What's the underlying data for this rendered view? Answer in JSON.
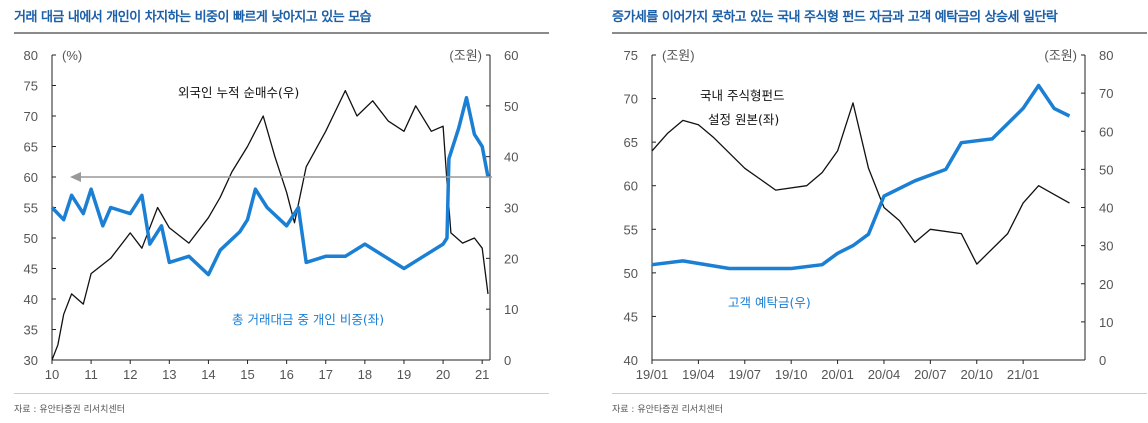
{
  "chart_data": [
    {
      "type": "line",
      "title": "거래 대금 내에서 개인이 차지하는 비중이 빠르게 낮아지고 있는 모습",
      "source": "자료 : 유안타증권 리서치센터",
      "left_unit": "(%)",
      "right_unit": "(조원)",
      "ylim_left": [
        30,
        80
      ],
      "ylim_right": [
        0,
        60
      ],
      "xlim": [
        2010,
        2021.2
      ],
      "left_ticks": [
        "30",
        "35",
        "40",
        "45",
        "50",
        "55",
        "60",
        "65",
        "70",
        "75",
        "80"
      ],
      "right_ticks": [
        "0",
        "10",
        "20",
        "30",
        "40",
        "50",
        "60"
      ],
      "x_ticks": [
        "10",
        "11",
        "12",
        "13",
        "14",
        "15",
        "16",
        "17",
        "18",
        "19",
        "20",
        "21"
      ],
      "annotation_arrow_left_value": 60,
      "series": [
        {
          "name": "외국인 누적 순매수(우)",
          "axis": "right",
          "color": "#111111",
          "x": [
            2010,
            2010.15,
            2010.3,
            2010.5,
            2010.8,
            2011,
            2011.5,
            2012,
            2012.3,
            2012.7,
            2013,
            2013.5,
            2014,
            2014.3,
            2014.6,
            2015,
            2015.4,
            2015.7,
            2016,
            2016.2,
            2016.5,
            2017,
            2017.5,
            2017.8,
            2018.2,
            2018.6,
            2019,
            2019.3,
            2019.7,
            2020,
            2020.1,
            2020.2,
            2020.5,
            2020.8,
            2021,
            2021.15
          ],
          "y": [
            0,
            3,
            9,
            13,
            11,
            17,
            20,
            25,
            22,
            30,
            26,
            23,
            28,
            32,
            37,
            42,
            48,
            40,
            33,
            27,
            38,
            45,
            53,
            48,
            51,
            47,
            45,
            50,
            45,
            46,
            35,
            25,
            23,
            24,
            22,
            13
          ]
        },
        {
          "name": "총 거래대금 중 개인 비중(좌)",
          "axis": "left",
          "color": "#1b7fd4",
          "x": [
            2010,
            2010.3,
            2010.5,
            2010.8,
            2011,
            2011.3,
            2011.5,
            2012,
            2012.3,
            2012.5,
            2012.8,
            2013,
            2013.5,
            2014,
            2014.3,
            2014.8,
            2015,
            2015.2,
            2015.5,
            2016,
            2016.3,
            2016.5,
            2017,
            2017.5,
            2018,
            2018.5,
            2019,
            2019.5,
            2020,
            2020.1,
            2020.15,
            2020.4,
            2020.6,
            2020.8,
            2021,
            2021.15
          ],
          "y": [
            55,
            53,
            57,
            54,
            58,
            52,
            55,
            54,
            57,
            49,
            52,
            46,
            47,
            44,
            48,
            51,
            53,
            58,
            55,
            52,
            55,
            46,
            47,
            47,
            49,
            47,
            45,
            47,
            49,
            50,
            63,
            68,
            73,
            67,
            65,
            60
          ]
        }
      ],
      "labels": {
        "black": "외국인 누적 순매수(우)",
        "blue": "총 거래대금 중 개인 비중(좌)"
      }
    },
    {
      "type": "line",
      "title": "증가세를 이어가지 못하고 있는 국내 주식형 펀드 자금과 고객 예탁금의 상승세 일단락",
      "source": "자료 : 유안타증권 리서치센터",
      "left_unit": "(조원)",
      "right_unit": "(조원)",
      "ylim_left": [
        40,
        75
      ],
      "ylim_right": [
        0,
        80
      ],
      "xlim": [
        "19/01",
        "21/05"
      ],
      "left_ticks": [
        "40",
        "45",
        "50",
        "55",
        "60",
        "65",
        "70",
        "75"
      ],
      "right_ticks": [
        "0",
        "10",
        "20",
        "30",
        "40",
        "50",
        "60",
        "70",
        "80"
      ],
      "x_ticks": [
        "19/01",
        "19/04",
        "19/07",
        "19/10",
        "20/01",
        "20/04",
        "20/07",
        "20/10",
        "21/01"
      ],
      "series": [
        {
          "name": "국내 주식형펀드 설정 원본(좌)",
          "axis": "left",
          "color": "#111111",
          "x": [
            "19/01",
            "19/02",
            "19/03",
            "19/04",
            "19/05",
            "19/07",
            "19/09",
            "19/11",
            "19/12",
            "20/01",
            "20/02",
            "20/03",
            "20/04",
            "20/05",
            "20/06",
            "20/07",
            "20/09",
            "20/10",
            "20/12",
            "21/01",
            "21/02",
            "21/03",
            "21/04"
          ],
          "y": [
            64,
            66,
            67.5,
            67,
            65.5,
            62,
            59.5,
            60,
            61.5,
            64,
            69.5,
            62,
            57.5,
            56,
            53.5,
            55,
            54.5,
            51,
            54.5,
            58,
            60,
            59,
            58
          ]
        },
        {
          "name": "고객 예탁금(우)",
          "axis": "right",
          "color": "#1b7fd4",
          "x": [
            "19/01",
            "19/03",
            "19/06",
            "19/10",
            "19/12",
            "20/01",
            "20/02",
            "20/03",
            "20/04",
            "20/06",
            "20/08",
            "20/09",
            "20/11",
            "20/12",
            "21/01",
            "21/02",
            "21/03",
            "21/04"
          ],
          "y": [
            25,
            26,
            24,
            24,
            25,
            28,
            30,
            33,
            43,
            47,
            50,
            57,
            58,
            62,
            66,
            72,
            66,
            64
          ]
        }
      ],
      "labels": {
        "black1": "국내 주식형펀드",
        "black2": "설정 원본(좌)",
        "blue": "고객 예탁금(우)"
      }
    }
  ]
}
